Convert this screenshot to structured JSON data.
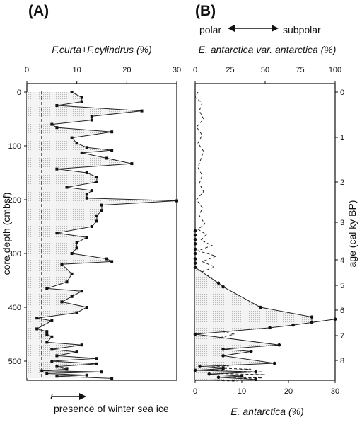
{
  "chart_data": [
    {
      "panel": "(A)",
      "type": "line",
      "title": "F.curta+F.cylindrus (%)",
      "xlim": [
        0,
        30
      ],
      "x_ticks": [
        0,
        10,
        20,
        30
      ],
      "ylim": [
        -10,
        545
      ],
      "y_ticks": [
        0,
        100,
        200,
        300,
        400,
        500
      ],
      "ylabel": "core depth (cmbsf)",
      "threshold_x": 3,
      "threshold_note": "presence of winter sea ice",
      "series": [
        {
          "x": [
            9,
            11,
            11,
            6,
            23,
            13,
            13,
            5,
            6,
            17,
            9,
            10,
            12,
            17,
            11,
            16,
            21,
            6,
            12,
            14,
            14,
            8,
            13,
            12,
            12,
            30,
            15,
            15,
            14,
            14,
            13,
            6,
            12,
            10,
            10,
            9,
            16,
            17,
            7,
            9,
            8,
            4,
            11,
            9,
            7,
            12,
            10,
            2,
            5,
            2,
            4,
            4,
            5,
            4,
            11,
            5,
            10,
            6,
            14,
            5,
            14,
            6,
            8,
            3,
            15,
            4,
            12,
            6,
            17
          ],
          "y": [
            0,
            10,
            18,
            25,
            35,
            45,
            52,
            60,
            66,
            74,
            85,
            95,
            103,
            108,
            113,
            123,
            133,
            143,
            150,
            158,
            167,
            177,
            183,
            190,
            197,
            202,
            210,
            220,
            230,
            240,
            250,
            262,
            270,
            280,
            290,
            300,
            310,
            315,
            320,
            338,
            353,
            365,
            370,
            380,
            390,
            400,
            410,
            420,
            425,
            440,
            445,
            450,
            455,
            465,
            470,
            478,
            483,
            490,
            495,
            500,
            505,
            510,
            515,
            518,
            520,
            523,
            526,
            528,
            532
          ]
        }
      ]
    },
    {
      "panel": "(B)",
      "type": "line",
      "header_left": "polar",
      "header_right": "subpolar",
      "title": "E. antarctica var. antarctica (%)",
      "xlim": [
        0,
        100
      ],
      "x_ticks": [
        0,
        25,
        50,
        75,
        100
      ],
      "bottom_xlabel": "E. antarctica (%)",
      "bottom_xlim": [
        0,
        30
      ],
      "bottom_x_ticks": [
        0,
        10,
        20,
        30
      ],
      "ylabel": "age (cal ky BP)",
      "y_ticks": [
        "0",
        "1",
        "2",
        "3",
        "4",
        "5",
        "6",
        "7",
        "8"
      ],
      "series": [
        {
          "name": "E. antarctica var. antarctica",
          "style": "dashed",
          "x": [
            2,
            0,
            5,
            3,
            6,
            1,
            5,
            2,
            6,
            4,
            2,
            5,
            3,
            6,
            1,
            5,
            3,
            7,
            2,
            8,
            4,
            12,
            2,
            15,
            5,
            14,
            4,
            12,
            3,
            10,
            5,
            8,
            18,
            12,
            25,
            10,
            30,
            14,
            22,
            10,
            28,
            12,
            20,
            18,
            30,
            10,
            14,
            20,
            6,
            10,
            30,
            8,
            24,
            5,
            40,
            10,
            48,
            15,
            50,
            10,
            5,
            48,
            20,
            5,
            30
          ],
          "y": [
            0,
            10,
            20,
            35,
            50,
            65,
            80,
            95,
            110,
            125,
            140,
            155,
            170,
            185,
            200,
            215,
            230,
            245,
            255,
            265,
            275,
            285,
            295,
            305,
            315,
            325,
            335,
            345,
            355,
            365,
            372,
            380,
            390,
            395,
            400,
            405,
            410,
            420,
            430,
            440,
            450,
            460,
            465,
            470,
            475,
            480,
            485,
            490,
            495,
            500,
            503,
            506,
            509,
            512,
            515,
            518,
            520,
            523,
            525,
            527,
            529,
            531,
            533,
            535,
            537
          ]
        },
        {
          "name": "E. antarctica",
          "style": "solid",
          "x": [
            0,
            0,
            0,
            0,
            0,
            0,
            0,
            0,
            0,
            5,
            6,
            14,
            25,
            25,
            30,
            21,
            16,
            0,
            18,
            6,
            12,
            6,
            17,
            1,
            6,
            0,
            13,
            3,
            10,
            5,
            13
          ],
          "y": [
            258,
            266,
            274,
            282,
            292,
            300,
            310,
            318,
            326,
            355,
            362,
            400,
            418,
            428,
            422,
            433,
            438,
            450,
            470,
            478,
            482,
            490,
            504,
            510,
            514,
            517,
            520,
            524,
            528,
            530,
            534
          ]
        }
      ]
    }
  ]
}
